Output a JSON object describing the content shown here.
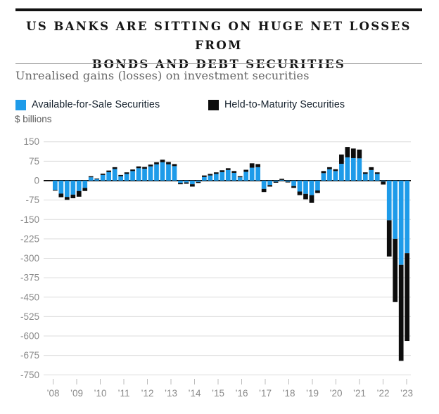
{
  "header": {
    "title_lines": [
      "US BANKS ARE SITTING ON HUGE NET LOSSES FROM",
      "BONDS AND DEBT SECURITIES"
    ],
    "subtitle": "Unrealised gains (losses) on investment securities"
  },
  "legend": [
    {
      "label": "Available-for-Sale Securities",
      "color": "#1e9be9"
    },
    {
      "label": "Held-to-Maturity Securities",
      "color": "#0d0d0d"
    }
  ],
  "unit_label": "$ billions",
  "chart_data": {
    "type": "bar",
    "stacked": true,
    "title": "Unrealised gains (losses) on investment securities",
    "ylabel": "$ billions",
    "ylim": [
      -750,
      150
    ],
    "grid": true,
    "legend_position": "top",
    "yticks": [
      150,
      75,
      0,
      -75,
      -150,
      -225,
      -300,
      -375,
      -450,
      -525,
      -600,
      -675,
      -750
    ],
    "x_labels": [
      "’08",
      "’09",
      "’10",
      "’11",
      "’12",
      "’13",
      "’14",
      "’15",
      "’16",
      "’17",
      "’18",
      "’19",
      "’20",
      "’21",
      "’22",
      "’23"
    ],
    "series_names": [
      "Available-for-Sale Securities",
      "Held-to-Maturity Securities"
    ],
    "colors": {
      "afs": "#1e9be9",
      "htm": "#0d0d0d",
      "zero_axis": "#111111",
      "gridline": "#dcdcdc",
      "tick": "#bbbbbb",
      "axis_text": "#8a8a8a"
    },
    "quarters": [
      {
        "t": "2008 Q1",
        "afs": -36,
        "htm": -2
      },
      {
        "t": "2008 Q2",
        "afs": -50,
        "htm": -14
      },
      {
        "t": "2008 Q3",
        "afs": -63,
        "htm": -11
      },
      {
        "t": "2008 Q4",
        "afs": -54,
        "htm": -14
      },
      {
        "t": "2009 Q1",
        "afs": -40,
        "htm": -22
      },
      {
        "t": "2009 Q2",
        "afs": -28,
        "htm": -12
      },
      {
        "t": "2009 Q3",
        "afs": 13,
        "htm": 4
      },
      {
        "t": "2009 Q4",
        "afs": 6,
        "htm": 2
      },
      {
        "t": "2010 Q1",
        "afs": 22,
        "htm": 5
      },
      {
        "t": "2010 Q2",
        "afs": 33,
        "htm": 6
      },
      {
        "t": "2010 Q3",
        "afs": 45,
        "htm": 7
      },
      {
        "t": "2010 Q4",
        "afs": 17,
        "htm": 5
      },
      {
        "t": "2011 Q1",
        "afs": 26,
        "htm": 6
      },
      {
        "t": "2011 Q2",
        "afs": 37,
        "htm": 6
      },
      {
        "t": "2011 Q3",
        "afs": 48,
        "htm": 7
      },
      {
        "t": "2011 Q4",
        "afs": 46,
        "htm": 7
      },
      {
        "t": "2012 Q1",
        "afs": 55,
        "htm": 7
      },
      {
        "t": "2012 Q2",
        "afs": 63,
        "htm": 8
      },
      {
        "t": "2012 Q3",
        "afs": 71,
        "htm": 10
      },
      {
        "t": "2012 Q4",
        "afs": 63,
        "htm": 9
      },
      {
        "t": "2013 Q1",
        "afs": 56,
        "htm": 8
      },
      {
        "t": "2013 Q2",
        "afs": -9,
        "htm": -5
      },
      {
        "t": "2013 Q3",
        "afs": -7,
        "htm": -5
      },
      {
        "t": "2013 Q4",
        "afs": -14,
        "htm": -9
      },
      {
        "t": "2014 Q1",
        "afs": -5,
        "htm": -4
      },
      {
        "t": "2014 Q2",
        "afs": 14,
        "htm": 6
      },
      {
        "t": "2014 Q3",
        "afs": 20,
        "htm": 6
      },
      {
        "t": "2014 Q4",
        "afs": 26,
        "htm": 6
      },
      {
        "t": "2015 Q1",
        "afs": 33,
        "htm": 7
      },
      {
        "t": "2015 Q2",
        "afs": 41,
        "htm": 7
      },
      {
        "t": "2015 Q3",
        "afs": 30,
        "htm": 7
      },
      {
        "t": "2015 Q4",
        "afs": 13,
        "htm": 4
      },
      {
        "t": "2016 Q1",
        "afs": 34,
        "htm": 8
      },
      {
        "t": "2016 Q2",
        "afs": 50,
        "htm": 17
      },
      {
        "t": "2016 Q3",
        "afs": 52,
        "htm": 12
      },
      {
        "t": "2016 Q4",
        "afs": -32,
        "htm": -12
      },
      {
        "t": "2017 Q1",
        "afs": -17,
        "htm": -6
      },
      {
        "t": "2017 Q2",
        "afs": -4,
        "htm": -4
      },
      {
        "t": "2017 Q3",
        "afs": 3,
        "htm": 4
      },
      {
        "t": "2017 Q4",
        "afs": -4,
        "htm": -3
      },
      {
        "t": "2018 Q1",
        "afs": -21,
        "htm": -7
      },
      {
        "t": "2018 Q2",
        "afs": -42,
        "htm": -14
      },
      {
        "t": "2018 Q3",
        "afs": -51,
        "htm": -21
      },
      {
        "t": "2018 Q4",
        "afs": -56,
        "htm": -30
      },
      {
        "t": "2019 Q1",
        "afs": -38,
        "htm": -10
      },
      {
        "t": "2019 Q2",
        "afs": 29,
        "htm": 8
      },
      {
        "t": "2019 Q3",
        "afs": 44,
        "htm": 8
      },
      {
        "t": "2019 Q4",
        "afs": 37,
        "htm": 7
      },
      {
        "t": "2020 Q1",
        "afs": 65,
        "htm": 36
      },
      {
        "t": "2020 Q2",
        "afs": 90,
        "htm": 40
      },
      {
        "t": "2020 Q3",
        "afs": 87,
        "htm": 37
      },
      {
        "t": "2020 Q4",
        "afs": 86,
        "htm": 34
      },
      {
        "t": "2021 Q1",
        "afs": 26,
        "htm": 6
      },
      {
        "t": "2021 Q2",
        "afs": 41,
        "htm": 11
      },
      {
        "t": "2021 Q3",
        "afs": 26,
        "htm": 6
      },
      {
        "t": "2021 Q4",
        "afs": -3,
        "htm": -12
      },
      {
        "t": "2022 Q1",
        "afs": -153,
        "htm": -140
      },
      {
        "t": "2022 Q2",
        "afs": -225,
        "htm": -244
      },
      {
        "t": "2022 Q3",
        "afs": -325,
        "htm": -371
      },
      {
        "t": "2022 Q4",
        "afs": -280,
        "htm": -339
      }
    ]
  }
}
